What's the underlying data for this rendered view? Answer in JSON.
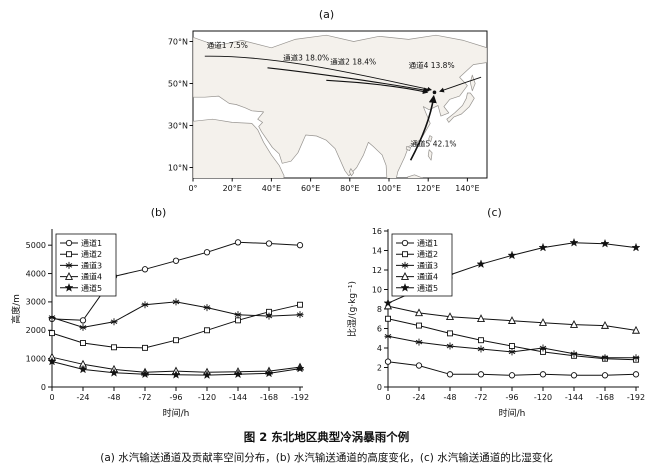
{
  "figure": {
    "caption_title": "图 2  东北地区典型冷涡暴雨个例",
    "caption_sub": "(a) 水汽输送通道及贡献率空间分布，(b) 水汽输送通道的高度变化，(c) 水汽输送通道的比湿变化"
  },
  "map": {
    "panel_label": "(a)",
    "x_ticks": [
      "0°",
      "20°E",
      "40°E",
      "60°E",
      "80°E",
      "100°E",
      "120°E",
      "140°E"
    ],
    "y_ticks": [
      "70°N",
      "50°N",
      "30°N",
      "10°N"
    ],
    "channels": [
      {
        "id": "channel-1",
        "label": "通道1",
        "value": "7.5%"
      },
      {
        "id": "channel-3",
        "label": "通道3",
        "value": "18.0%"
      },
      {
        "id": "channel-2",
        "label": "通道2",
        "value": "18.4%"
      },
      {
        "id": "channel-4",
        "label": "通道4",
        "value": "13.8%"
      },
      {
        "id": "channel-5",
        "label": "通道5",
        "value": "42.1%"
      }
    ]
  },
  "chart_data": [
    {
      "panel": "(b)",
      "type": "line",
      "x": [
        0,
        -24,
        -48,
        -72,
        -96,
        -120,
        -144,
        -168,
        -192
      ],
      "xlabel": "时间/h",
      "ylabel": "高度/m",
      "ylim": [
        0,
        5500
      ],
      "yticks": [
        0,
        1000,
        2000,
        3000,
        4000,
        5000
      ],
      "legend_position": "top-left",
      "grid": false,
      "series": [
        {
          "name": "通道1",
          "marker": "circle",
          "values": [
            2400,
            2350,
            3900,
            4150,
            4450,
            4750,
            5100,
            5060,
            5000
          ]
        },
        {
          "name": "通道2",
          "marker": "square",
          "values": [
            1900,
            1550,
            1400,
            1380,
            1650,
            2000,
            2350,
            2650,
            2900
          ]
        },
        {
          "name": "通道3",
          "marker": "asterisk",
          "values": [
            2450,
            2100,
            2300,
            2900,
            3000,
            2800,
            2550,
            2500,
            2550
          ]
        },
        {
          "name": "通道4",
          "marker": "triangle",
          "values": [
            1050,
            800,
            620,
            520,
            560,
            520,
            540,
            560,
            700
          ]
        },
        {
          "name": "通道5",
          "marker": "star",
          "values": [
            900,
            620,
            500,
            450,
            430,
            420,
            450,
            480,
            650
          ]
        }
      ]
    },
    {
      "panel": "(c)",
      "type": "line",
      "x": [
        0,
        -24,
        -48,
        -72,
        -96,
        -120,
        -144,
        -168,
        -192
      ],
      "xlabel": "时间/h",
      "ylabel": "比湿/(g·kg⁻¹)",
      "ylim": [
        0,
        16
      ],
      "yticks": [
        0,
        2,
        4,
        6,
        8,
        10,
        12,
        14,
        16
      ],
      "legend_position": "top-left",
      "grid": false,
      "series": [
        {
          "name": "通道1",
          "marker": "circle",
          "values": [
            2.6,
            2.2,
            1.3,
            1.3,
            1.2,
            1.3,
            1.2,
            1.2,
            1.3
          ]
        },
        {
          "name": "通道2",
          "marker": "square",
          "values": [
            7.0,
            6.3,
            5.5,
            4.8,
            4.2,
            3.6,
            3.2,
            2.9,
            2.8
          ]
        },
        {
          "name": "通道3",
          "marker": "asterisk",
          "values": [
            5.2,
            4.6,
            4.2,
            3.9,
            3.6,
            4.0,
            3.4,
            3.0,
            3.0
          ]
        },
        {
          "name": "通道4",
          "marker": "triangle",
          "values": [
            8.3,
            7.6,
            7.2,
            7.0,
            6.8,
            6.6,
            6.4,
            6.3,
            5.8
          ]
        },
        {
          "name": "通道5",
          "marker": "star",
          "values": [
            8.6,
            10.0,
            11.5,
            12.6,
            13.5,
            14.3,
            14.8,
            14.7,
            14.3
          ]
        }
      ]
    }
  ]
}
